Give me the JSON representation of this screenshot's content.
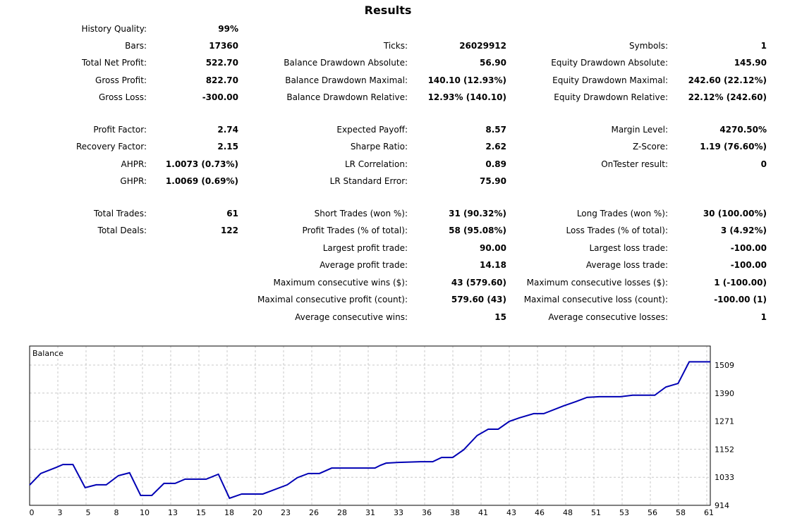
{
  "title": "Results",
  "rows": [
    [
      [
        "History Quality:",
        "99%"
      ],
      null,
      null
    ],
    [
      [
        "Bars:",
        "17360"
      ],
      [
        "Ticks:",
        "26029912"
      ],
      [
        "Symbols:",
        "1"
      ]
    ],
    [
      [
        "Total Net Profit:",
        "522.70"
      ],
      [
        "Balance Drawdown Absolute:",
        "56.90"
      ],
      [
        "Equity Drawdown Absolute:",
        "145.90"
      ]
    ],
    [
      [
        "Gross Profit:",
        "822.70"
      ],
      [
        "Balance Drawdown Maximal:",
        "140.10 (12.93%)"
      ],
      [
        "Equity Drawdown Maximal:",
        "242.60 (22.12%)"
      ]
    ],
    [
      [
        "Gross Loss:",
        "-300.00"
      ],
      [
        "Balance Drawdown Relative:",
        "12.93% (140.10)"
      ],
      [
        "Equity Drawdown Relative:",
        "22.12% (242.60)"
      ]
    ],
    [
      [
        "Profit Factor:",
        "2.74"
      ],
      [
        "Expected Payoff:",
        "8.57"
      ],
      [
        "Margin Level:",
        "4270.50%"
      ]
    ],
    [
      [
        "Recovery Factor:",
        "2.15"
      ],
      [
        "Sharpe Ratio:",
        "2.62"
      ],
      [
        "Z-Score:",
        "1.19 (76.60%)"
      ]
    ],
    [
      [
        "AHPR:",
        "1.0073 (0.73%)"
      ],
      [
        "LR Correlation:",
        "0.89"
      ],
      [
        "OnTester result:",
        "0"
      ]
    ],
    [
      [
        "GHPR:",
        "1.0069 (0.69%)"
      ],
      [
        "LR Standard Error:",
        "75.90"
      ],
      null
    ],
    [
      [
        "Total Trades:",
        "61"
      ],
      [
        "Short Trades (won %):",
        "31 (90.32%)"
      ],
      [
        "Long Trades (won %):",
        "30 (100.00%)"
      ]
    ],
    [
      [
        "Total Deals:",
        "122"
      ],
      [
        "Profit Trades (% of total):",
        "58 (95.08%)"
      ],
      [
        "Loss Trades (% of total):",
        "3 (4.92%)"
      ]
    ],
    [
      null,
      [
        "Largest profit trade:",
        "90.00"
      ],
      [
        "Largest loss trade:",
        "-100.00"
      ]
    ],
    [
      null,
      [
        "Average profit trade:",
        "14.18"
      ],
      [
        "Average loss trade:",
        "-100.00"
      ]
    ],
    [
      null,
      [
        "Maximum consecutive wins ($):",
        "43 (579.60)"
      ],
      [
        "Maximum consecutive losses ($):",
        "1 (-100.00)"
      ]
    ],
    [
      null,
      [
        "Maximal consecutive profit (count):",
        "579.60 (43)"
      ],
      [
        "Maximal consecutive loss (count):",
        "-100.00 (1)"
      ]
    ],
    [
      null,
      [
        "Average consecutive wins:",
        "15"
      ],
      [
        "Average consecutive losses:",
        "1"
      ]
    ]
  ],
  "chart_data": {
    "type": "line",
    "title": "Balance",
    "line_color": "#0000b4",
    "grid_color": "#c8c8c8",
    "xlim": [
      0,
      61.3
    ],
    "ylim": [
      914,
      1588
    ],
    "y_ticks": [
      914,
      1033,
      1152,
      1271,
      1390,
      1509
    ],
    "x_ticks": [
      "0",
      "3",
      "5",
      "8",
      "10",
      "13",
      "15",
      "18",
      "20",
      "23",
      "26",
      "28",
      "31",
      "33",
      "36",
      "38",
      "41",
      "43",
      "46",
      "48",
      "51",
      "53",
      "56",
      "58",
      "61"
    ],
    "series": [
      {
        "name": "Balance",
        "x": [
          0,
          1,
          2.4,
          3,
          3.9,
          5,
          6,
          6.9,
          8,
          9,
          10,
          11,
          12.1,
          13.1,
          14,
          15.9,
          17,
          18,
          19.1,
          21,
          23.2,
          24.1,
          25.1,
          26.1,
          27.2,
          29.1,
          31.1,
          31.6,
          32.1,
          33.2,
          35.2,
          36.3,
          37.1,
          38.1,
          39.1,
          40.3,
          41.3,
          42.2,
          43.2,
          44.1,
          45.4,
          46.3,
          48.1,
          49.2,
          50.2,
          51.3,
          53.2,
          54.3,
          56.3,
          57.3,
          58.4,
          59.4,
          61.3
        ],
        "y": [
          1000,
          1049,
          1075,
          1087,
          1087,
          989,
          1001,
          1001,
          1040,
          1052,
          956,
          956,
          1007,
          1007,
          1025,
          1025,
          1046,
          944,
          962,
          962,
          1001,
          1031,
          1049,
          1049,
          1072,
          1072,
          1072,
          1084,
          1093,
          1096,
          1099,
          1099,
          1117,
          1117,
          1150,
          1210,
          1237,
          1237,
          1270,
          1285,
          1303,
          1303,
          1336,
          1354,
          1372,
          1375,
          1375,
          1381,
          1381,
          1416,
          1431,
          1522.7,
          1522.7
        ]
      }
    ]
  }
}
